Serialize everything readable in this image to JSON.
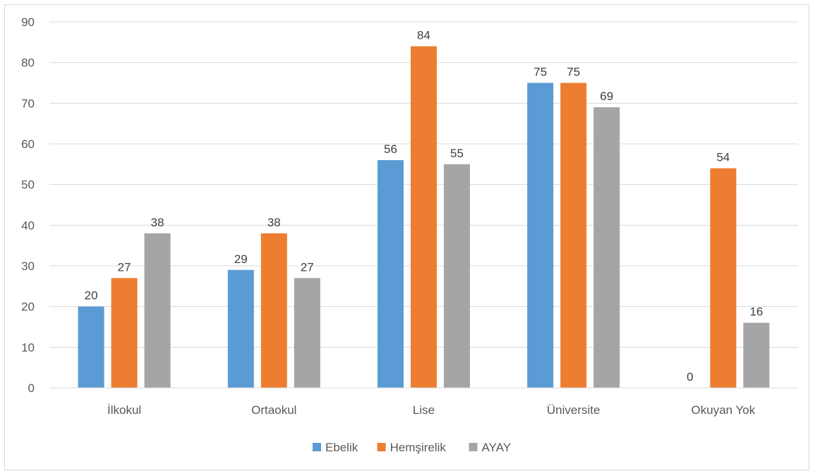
{
  "chart_data": {
    "type": "bar",
    "categories": [
      "İlkokul",
      "Ortaokul",
      "Lise",
      "Üniversite",
      "Okuyan Yok"
    ],
    "series": [
      {
        "name": "Ebelik",
        "color": "#5b9bd5",
        "values": [
          20,
          29,
          56,
          75,
          0
        ]
      },
      {
        "name": "Hemşirelik",
        "color": "#ed7d31",
        "values": [
          27,
          38,
          84,
          75,
          54
        ]
      },
      {
        "name": "AYAY",
        "color": "#a5a5a5",
        "values": [
          38,
          27,
          55,
          69,
          16
        ]
      }
    ],
    "ylim": [
      0,
      90
    ],
    "yticks": [
      0,
      10,
      20,
      30,
      40,
      50,
      60,
      70,
      80,
      90
    ],
    "grid": true,
    "data_labels": true,
    "legend_position": "bottom",
    "title": "",
    "xlabel": "",
    "ylabel": ""
  }
}
